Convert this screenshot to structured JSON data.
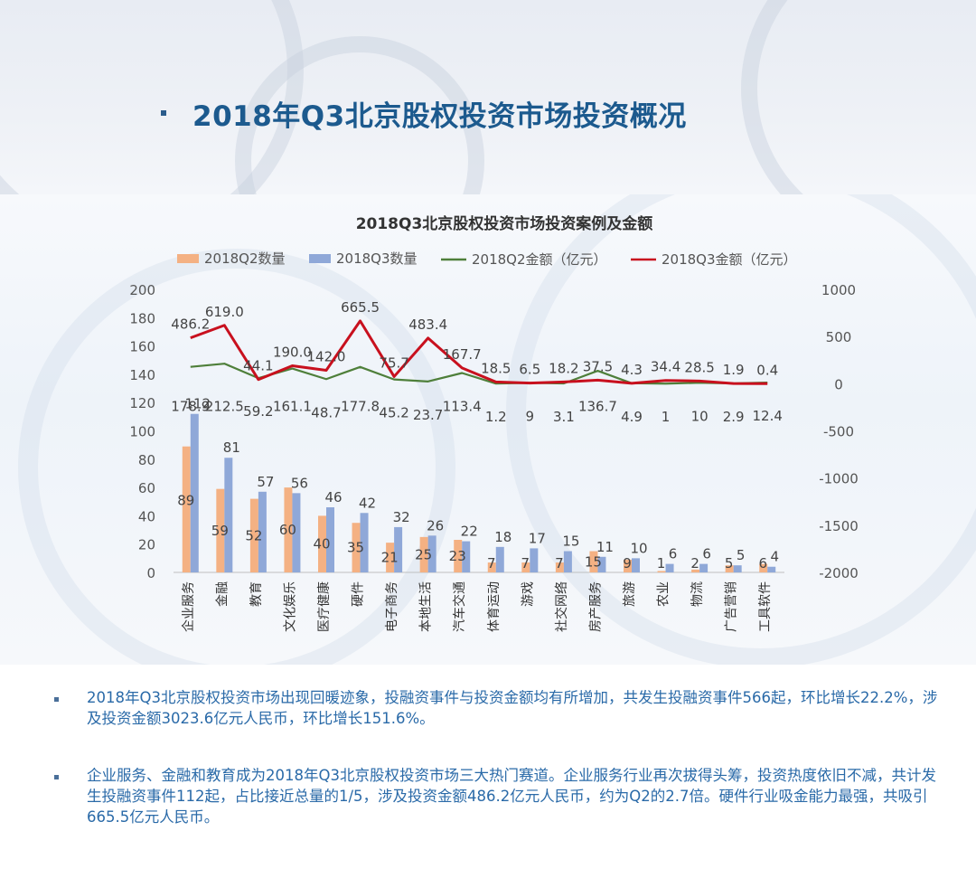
{
  "page": {
    "title": "2018年Q3北京股权投资市场投资概况",
    "paragraphs": [
      "2018年Q3北京股权投资市场出现回暖迹象，投融资事件与投资金额均有所增加，共发生投融资事件566起，环比增长22.2%，涉及投资金额3023.6亿元人民币，环比增长151.6%。",
      "企业服务、金融和教育成为2018年Q3北京股权投资市场三大热门赛道。企业服务行业再次拔得头筹，投资热度依旧不减，共计发生投融资事件112起，占比接近总量的1/5，涉及投资金额486.2亿元人民币，约为Q2的2.7倍。硬件行业吸金能力最强，共吸引665.5亿元人民币。"
    ]
  },
  "chart_data": {
    "type": "bar",
    "title": "2018Q3北京股权投资市场投资案例及金额",
    "categories": [
      "企业服务",
      "金融",
      "教育",
      "文化娱乐",
      "医疗健康",
      "硬件",
      "电子商务",
      "本地生活",
      "汽车交通",
      "体育运动",
      "游戏",
      "社交网络",
      "房产服务",
      "旅游",
      "农业",
      "物流",
      "广告营销",
      "工具软件"
    ],
    "series": [
      {
        "name": "2018Q2数量",
        "kind": "bar",
        "axis": "left",
        "color": "#f4b183",
        "values": [
          89,
          59,
          52,
          60,
          40,
          35,
          21,
          25,
          23,
          7,
          7,
          7,
          15,
          9,
          1,
          2,
          5,
          6
        ]
      },
      {
        "name": "2018Q3数量",
        "kind": "bar",
        "axis": "left",
        "color": "#8fa8d8",
        "values": [
          112,
          81,
          57,
          56,
          46,
          42,
          32,
          26,
          22,
          18,
          17,
          15,
          11,
          10,
          6,
          6,
          5,
          4
        ]
      },
      {
        "name": "2018Q2金额（亿元）",
        "kind": "line",
        "axis": "right",
        "color": "#4e7f3a",
        "values": [
          178.9,
          212.5,
          59.2,
          161.1,
          48.7,
          177.8,
          45.2,
          23.7,
          113.4,
          1.2,
          9,
          3.1,
          136.7,
          4.9,
          1,
          10,
          2.9,
          12.4
        ]
      },
      {
        "name": "2018Q3金额（亿元）",
        "kind": "line",
        "axis": "right",
        "color": "#c8101e",
        "values": [
          486.2,
          619.0,
          44.1,
          190.0,
          142.0,
          665.5,
          75.7,
          483.4,
          167.7,
          18.5,
          6.5,
          18.2,
          37.5,
          4.3,
          34.4,
          28.5,
          1.9,
          0.4
        ]
      }
    ],
    "q2_amount_labels": [
      "178.9",
      "212.5",
      "59.2",
      "161.1",
      "48.7",
      "177.8",
      "45.2",
      "23.7",
      "113.4",
      "1.2",
      "9",
      "3.1",
      "136.7",
      "4.9",
      "1",
      "10",
      "2.9",
      "12.4"
    ],
    "q3_amount_labels": [
      "486.2",
      "619.0",
      "44.1",
      "190.0",
      "142.0",
      "665.5",
      "75.7",
      "483.4",
      "167.7",
      "18.5",
      "6.5",
      "18.2",
      "37.5",
      "4.3",
      "34.4",
      "28.5",
      "1.9",
      "0.4"
    ],
    "y_left": {
      "min": 0,
      "max": 200,
      "ticks": [
        "0",
        "20",
        "40",
        "60",
        "80",
        "100",
        "120",
        "140",
        "160",
        "180",
        "200"
      ]
    },
    "y_right": {
      "min": -2000,
      "max": 1000,
      "ticks": [
        "-2000",
        "-1500",
        "-1000",
        "-500",
        "0",
        "500",
        "1000"
      ]
    },
    "legend_position": "top",
    "grid": false
  }
}
